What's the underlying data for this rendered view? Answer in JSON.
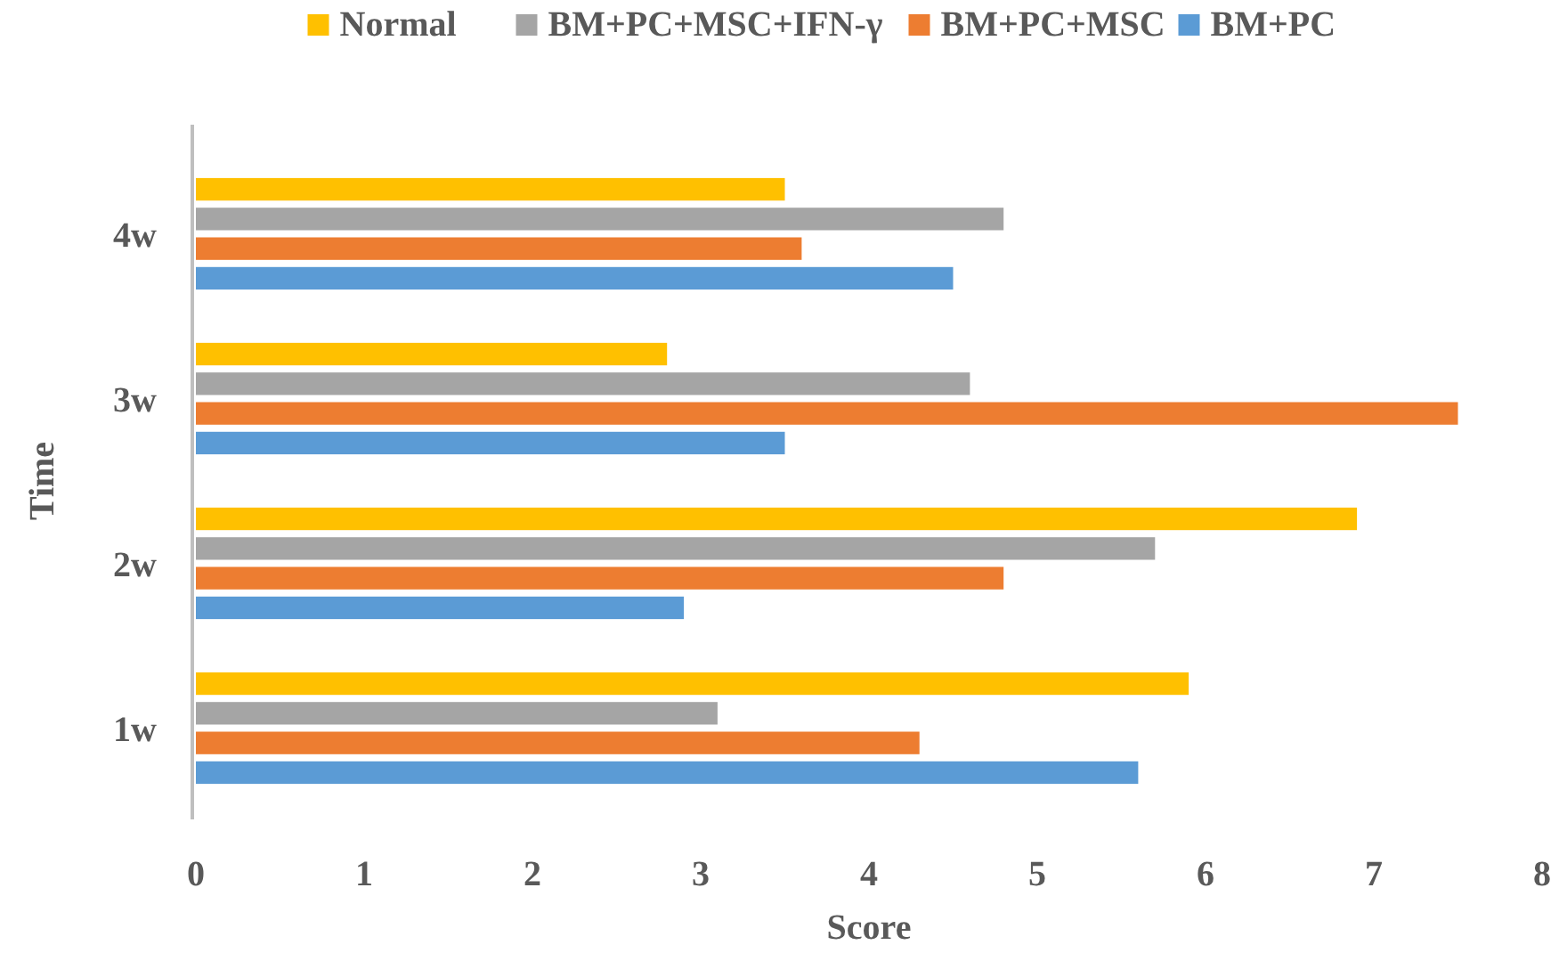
{
  "chart_data": {
    "type": "bar",
    "orientation": "horizontal",
    "xlabel": "Score",
    "ylabel": "Time",
    "categories": [
      "4w",
      "3w",
      "2w",
      "1w"
    ],
    "series": [
      {
        "name": "Normal",
        "color": "#ffc000",
        "values": [
          3.5,
          2.8,
          6.9,
          5.9
        ]
      },
      {
        "name": "BM+PC+MSC+IFN-γ",
        "color": "#a5a5a5",
        "values": [
          4.8,
          4.6,
          5.7,
          3.1
        ]
      },
      {
        "name": "BM+PC+MSC",
        "color": "#ed7d31",
        "values": [
          3.6,
          7.5,
          4.8,
          4.3
        ]
      },
      {
        "name": "BM+PC",
        "color": "#5b9bd5",
        "values": [
          4.5,
          3.5,
          2.9,
          5.6
        ]
      }
    ],
    "xlim": [
      0,
      8
    ],
    "xticks": [
      0,
      1,
      2,
      3,
      4,
      5,
      6,
      7,
      8
    ],
    "grid": false,
    "legend": "top"
  }
}
